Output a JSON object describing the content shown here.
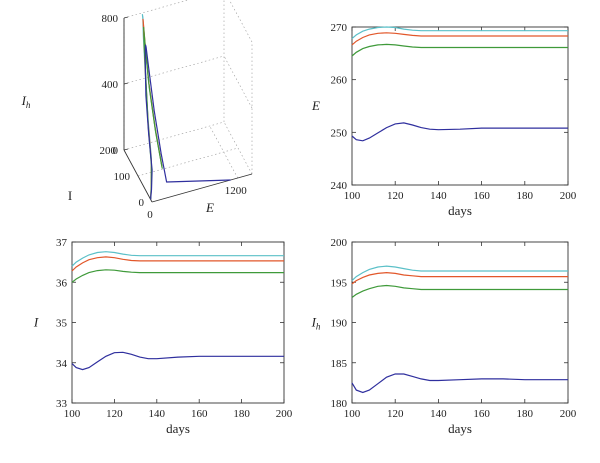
{
  "chart_data": [
    {
      "type": "line3d",
      "axes": {
        "x": "E",
        "y": "I",
        "z": "I_h"
      },
      "xlabel": "E",
      "ylabel": "I",
      "zlabel": "I",
      "zlabel_sub": "h",
      "xticks": [
        "0",
        "1200"
      ],
      "yticks": [
        "0",
        "100",
        "200"
      ],
      "zticks": [
        "0",
        "400",
        "800"
      ],
      "grid": true,
      "series": [
        {
          "color": "#5bc0c8",
          "x": [
            0,
            20,
            60,
            120,
            200,
            250,
            265,
            268,
            269,
            268,
            264,
            258,
            252
          ],
          "y": [
            10,
            15,
            35,
            90,
            150,
            190,
            200,
            205,
            203,
            190,
            160,
            110,
            60
          ],
          "z": [
            0,
            80,
            200,
            350,
            520,
            680,
            760,
            780,
            770,
            650,
            450,
            250,
            100
          ]
        },
        {
          "color": "#e2572a",
          "x": [
            0,
            20,
            60,
            120,
            200,
            250,
            263,
            266,
            267,
            266,
            262,
            256,
            250
          ],
          "y": [
            10,
            15,
            35,
            90,
            148,
            185,
            196,
            200,
            199,
            186,
            156,
            106,
            56
          ],
          "z": [
            0,
            70,
            180,
            330,
            500,
            660,
            740,
            760,
            750,
            640,
            440,
            240,
            95
          ]
        },
        {
          "color": "#3f9a3a",
          "x": [
            0,
            20,
            60,
            120,
            200,
            245,
            259,
            262,
            263,
            262,
            258,
            252,
            246
          ],
          "y": [
            10,
            15,
            35,
            88,
            144,
            180,
            190,
            194,
            193,
            180,
            150,
            102,
            52
          ],
          "z": [
            0,
            60,
            160,
            300,
            470,
            620,
            700,
            720,
            710,
            610,
            420,
            230,
            90
          ]
        },
        {
          "color": "#2f2f9e",
          "x": [
            0,
            20,
            60,
            110,
            170,
            220,
            240,
            248,
            250,
            249,
            247,
            245,
            243,
            1100
          ],
          "y": [
            10,
            14,
            30,
            80,
            130,
            160,
            170,
            172,
            170,
            150,
            110,
            60,
            20,
            0
          ],
          "z": [
            0,
            50,
            140,
            270,
            420,
            560,
            630,
            650,
            640,
            540,
            350,
            170,
            60,
            0
          ]
        }
      ]
    },
    {
      "type": "line",
      "xlabel": "days",
      "ylabel": "E",
      "xlim": [
        100,
        200
      ],
      "ylim": [
        240,
        270
      ],
      "xticks": [
        "100",
        "120",
        "140",
        "160",
        "180",
        "200"
      ],
      "yticks": [
        "240",
        "250",
        "260",
        "270"
      ],
      "x": [
        100,
        102,
        105,
        108,
        112,
        116,
        120,
        124,
        128,
        132,
        136,
        140,
        150,
        160,
        170,
        180,
        190,
        200
      ],
      "series": [
        {
          "color": "#5bc0c8",
          "values": [
            267.8,
            268.5,
            269.2,
            269.6,
            269.9,
            270.0,
            269.9,
            269.6,
            269.4,
            269.3,
            269.3,
            269.3,
            269.3,
            269.3,
            269.3,
            269.3,
            269.3,
            269.3
          ]
        },
        {
          "color": "#e2572a",
          "values": [
            266.6,
            267.3,
            268.0,
            268.5,
            268.8,
            268.9,
            268.8,
            268.6,
            268.4,
            268.3,
            268.3,
            268.3,
            268.3,
            268.3,
            268.3,
            268.3,
            268.3,
            268.3
          ]
        },
        {
          "color": "#3f9a3a",
          "values": [
            264.5,
            265.2,
            265.9,
            266.3,
            266.6,
            266.7,
            266.6,
            266.4,
            266.2,
            266.1,
            266.1,
            266.1,
            266.1,
            266.1,
            266.1,
            266.1,
            266.1,
            266.1
          ]
        },
        {
          "color": "#2f2f9e",
          "values": [
            249.3,
            248.6,
            248.4,
            248.9,
            249.9,
            250.9,
            251.6,
            251.8,
            251.4,
            250.9,
            250.6,
            250.5,
            250.6,
            250.8,
            250.8,
            250.8,
            250.8,
            250.8
          ]
        }
      ]
    },
    {
      "type": "line",
      "xlabel": "days",
      "ylabel": "I",
      "xlim": [
        100,
        200
      ],
      "ylim": [
        33,
        37
      ],
      "xticks": [
        "100",
        "120",
        "140",
        "160",
        "180",
        "200"
      ],
      "yticks": [
        "33",
        "34",
        "35",
        "36",
        "37"
      ],
      "x": [
        100,
        102,
        105,
        108,
        112,
        116,
        120,
        124,
        128,
        132,
        136,
        140,
        150,
        160,
        170,
        180,
        190,
        200
      ],
      "series": [
        {
          "color": "#5bc0c8",
          "values": [
            36.4,
            36.5,
            36.6,
            36.68,
            36.74,
            36.76,
            36.74,
            36.7,
            36.67,
            36.66,
            36.66,
            36.66,
            36.66,
            36.66,
            36.66,
            36.66,
            36.66,
            36.66
          ]
        },
        {
          "color": "#e2572a",
          "values": [
            36.28,
            36.38,
            36.48,
            36.56,
            36.61,
            36.63,
            36.61,
            36.57,
            36.54,
            36.53,
            36.53,
            36.53,
            36.53,
            36.53,
            36.53,
            36.53,
            36.53,
            36.53
          ]
        },
        {
          "color": "#3f9a3a",
          "values": [
            36.0,
            36.08,
            36.17,
            36.24,
            36.29,
            36.31,
            36.3,
            36.27,
            36.25,
            36.24,
            36.24,
            36.24,
            36.24,
            36.24,
            36.24,
            36.24,
            36.24,
            36.24
          ]
        },
        {
          "color": "#2f2f9e",
          "values": [
            33.98,
            33.88,
            33.83,
            33.88,
            34.02,
            34.16,
            34.25,
            34.26,
            34.21,
            34.14,
            34.1,
            34.1,
            34.14,
            34.16,
            34.16,
            34.16,
            34.16,
            34.16
          ]
        }
      ]
    },
    {
      "type": "line",
      "xlabel": "days",
      "ylabel": "I",
      "ylabel_sub": "h",
      "xlim": [
        100,
        200
      ],
      "ylim": [
        180,
        200
      ],
      "xticks": [
        "100",
        "120",
        "140",
        "160",
        "180",
        "200"
      ],
      "yticks": [
        "180",
        "185",
        "190",
        "195",
        "200"
      ],
      "x": [
        100,
        102,
        105,
        108,
        112,
        116,
        120,
        124,
        128,
        132,
        136,
        140,
        150,
        160,
        170,
        180,
        190,
        200
      ],
      "series": [
        {
          "color": "#5bc0c8",
          "values": [
            195.2,
            195.7,
            196.2,
            196.6,
            196.9,
            197.0,
            196.9,
            196.7,
            196.5,
            196.4,
            196.4,
            196.4,
            196.4,
            196.4,
            196.4,
            196.4,
            196.4,
            196.4
          ]
        },
        {
          "color": "#e2572a",
          "values": [
            194.8,
            195.2,
            195.6,
            195.9,
            196.1,
            196.2,
            196.1,
            195.9,
            195.8,
            195.7,
            195.7,
            195.7,
            195.7,
            195.7,
            195.7,
            195.7,
            195.7,
            195.7
          ]
        },
        {
          "color": "#3f9a3a",
          "values": [
            193.1,
            193.5,
            193.9,
            194.2,
            194.5,
            194.6,
            194.5,
            194.3,
            194.2,
            194.1,
            194.1,
            194.1,
            194.1,
            194.1,
            194.1,
            194.1,
            194.1,
            194.1
          ]
        },
        {
          "color": "#2f2f9e",
          "values": [
            182.5,
            181.6,
            181.3,
            181.6,
            182.4,
            183.2,
            183.6,
            183.6,
            183.3,
            183.0,
            182.8,
            182.8,
            182.9,
            183.0,
            183.0,
            182.9,
            182.9,
            182.9
          ]
        }
      ]
    }
  ]
}
